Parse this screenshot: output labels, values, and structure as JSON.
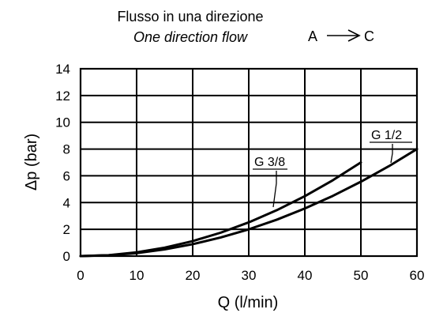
{
  "header": {
    "title_it": "Flusso in una direzione",
    "title_en": "One direction flow",
    "flow_from": "A",
    "flow_to": "C"
  },
  "chart_data": {
    "type": "line",
    "xlabel": "Q (l/min)",
    "ylabel": "Δp (bar)",
    "xlim": [
      0,
      60
    ],
    "ylim": [
      0,
      14
    ],
    "xticks": [
      0,
      10,
      20,
      30,
      40,
      50,
      60
    ],
    "yticks": [
      0,
      2,
      4,
      6,
      8,
      10,
      12,
      14
    ],
    "grid": true,
    "series": [
      {
        "name": "G 3/8",
        "x": [
          0,
          5,
          10,
          15,
          20,
          25,
          30,
          35,
          40,
          45,
          50
        ],
        "y": [
          0,
          0.07,
          0.28,
          0.63,
          1.12,
          1.75,
          2.52,
          3.43,
          4.48,
          5.67,
          7.0
        ]
      },
      {
        "name": "G 1/2",
        "x": [
          0,
          5,
          10,
          15,
          20,
          25,
          30,
          35,
          40,
          45,
          50,
          55,
          60
        ],
        "y": [
          0,
          0.06,
          0.22,
          0.5,
          0.89,
          1.39,
          2.0,
          2.72,
          3.56,
          4.5,
          5.56,
          6.72,
          8.0
        ]
      }
    ]
  }
}
